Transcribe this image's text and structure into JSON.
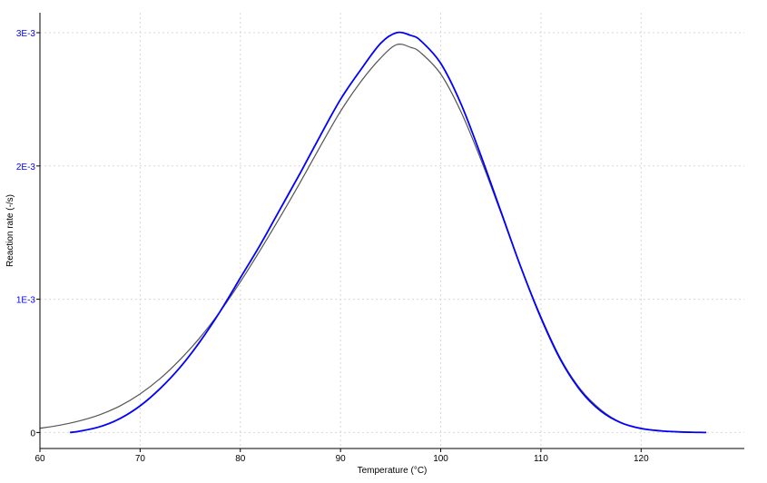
{
  "chart_data": {
    "type": "line",
    "xlabel": "Temperature (°C)",
    "ylabel": "Reaction rate (-/s)",
    "xlim": [
      60,
      130.3
    ],
    "ylim": [
      -0.00012,
      0.00315
    ],
    "grid": true,
    "x_ticks": [
      60,
      70,
      80,
      90,
      100,
      110,
      120
    ],
    "x_tick_labels": [
      "60",
      "70",
      "80",
      "90",
      "100",
      "110",
      "120"
    ],
    "y_ticks": [
      0,
      0.001,
      0.002,
      0.003
    ],
    "y_tick_labels": [
      "0",
      "1E-3",
      "2E-3",
      "3E-3"
    ],
    "colors": {
      "axis_tick_y": "#0000ff",
      "series_blue": "#0000ff",
      "series_gray": "#555555"
    },
    "series": [
      {
        "color": "#555555",
        "x": [
          60,
          62,
          64,
          66,
          68,
          70,
          72,
          74,
          76,
          78,
          80,
          82,
          84,
          86,
          88,
          90,
          92,
          94,
          95.6,
          97,
          98,
          100,
          102,
          104,
          106,
          108,
          110,
          112,
          114,
          116,
          118,
          120,
          122,
          124,
          126.5
        ],
        "values": [
          3.2e-05,
          5.5e-05,
          8.8e-05,
          0.000134,
          0.0002,
          0.00029,
          0.000405,
          0.000548,
          0.000715,
          0.00091,
          0.00113,
          0.00137,
          0.00162,
          0.00188,
          0.00215,
          0.00241,
          0.00263,
          0.00281,
          0.00291,
          0.00289,
          0.00285,
          0.00269,
          0.00241,
          0.00205,
          0.00165,
          0.00124,
          0.00087,
          0.00055,
          0.00032,
          0.00017,
          7.5e-05,
          3.2e-05,
          1.3e-05,
          4e-06,
          0.0
        ]
      },
      {
        "color": "#0000ff",
        "x": [
          63,
          64,
          66,
          68,
          70,
          72,
          74,
          76,
          78,
          80,
          82,
          84,
          86,
          88,
          90,
          92,
          94,
          95.6,
          97,
          98,
          100,
          102,
          104,
          106,
          108,
          110,
          112,
          114,
          116,
          118,
          120,
          122,
          124,
          126.5
        ],
        "values": [
          0.0,
          1e-05,
          4.4e-05,
          0.000105,
          0.0002,
          0.00033,
          0.00049,
          0.000685,
          0.00091,
          0.00116,
          0.00141,
          0.00168,
          0.00195,
          0.00223,
          0.0025,
          0.00272,
          0.00292,
          0.003,
          0.00298,
          0.00294,
          0.00277,
          0.00247,
          0.00208,
          0.00166,
          0.00124,
          0.00086,
          0.00054,
          0.00031,
          0.00016,
          7.3e-05,
          3e-05,
          1.2e-05,
          4e-06,
          0.0
        ]
      }
    ]
  }
}
